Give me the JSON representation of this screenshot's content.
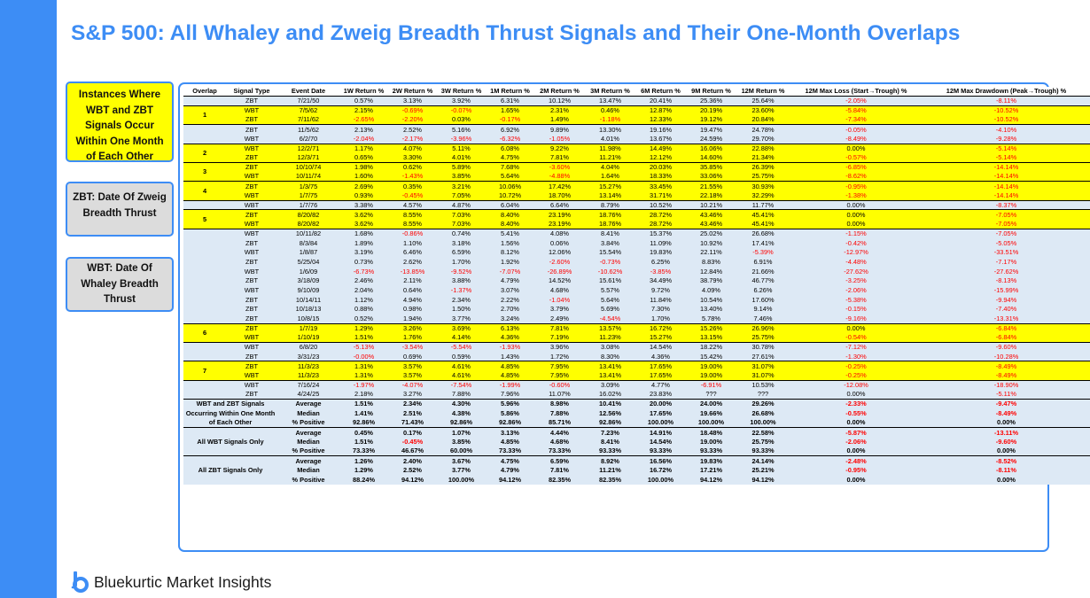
{
  "title": "S&P 500: All Whaley and Zweig Breadth Thrust Signals and Their One-Month Overlaps",
  "callouts": {
    "overlap": "Instances Where WBT and ZBT Signals Occur Within One Month of Each Other",
    "zbt": "ZBT: Date Of Zweig Breadth Thrust",
    "wbt": "WBT: Date Of Whaley Breadth Thrust"
  },
  "headers": [
    "Overlap",
    "Signal Type",
    "Event Date",
    "1W Return %",
    "2W Return %",
    "3W Return %",
    "1M Return %",
    "2M Return %",
    "3M Return %",
    "6M Return %",
    "9M Return %",
    "12M Return %",
    "12M Max Loss (Start→Trough) %",
    "12M Max Drawdown (Peak→Trough) %"
  ],
  "groups": [
    {
      "overlap": "",
      "hl": false,
      "rows": [
        [
          "ZBT",
          "7/21/50",
          "0.57%",
          "3.13%",
          "3.92%",
          "6.31%",
          "10.12%",
          "13.47%",
          "20.41%",
          "25.36%",
          "25.64%",
          "-2.05%",
          "-8.11%"
        ]
      ]
    },
    {
      "overlap": "1",
      "hl": true,
      "rows": [
        [
          "WBT",
          "7/5/62",
          "2.15%",
          "-0.69%",
          "-0.07%",
          "1.65%",
          "2.31%",
          "0.46%",
          "12.87%",
          "20.19%",
          "23.60%",
          "-5.84%",
          "-10.52%"
        ],
        [
          "ZBT",
          "7/11/62",
          "-2.65%",
          "-2.20%",
          "0.03%",
          "-0.17%",
          "1.49%",
          "-1.18%",
          "12.33%",
          "19.12%",
          "20.84%",
          "-7.34%",
          "-10.52%"
        ]
      ]
    },
    {
      "overlap": "",
      "hl": false,
      "rows": [
        [
          "ZBT",
          "11/5/62",
          "2.13%",
          "2.52%",
          "5.16%",
          "6.92%",
          "9.89%",
          "13.30%",
          "19.16%",
          "19.47%",
          "24.78%",
          "-0.05%",
          "-4.10%"
        ],
        [
          "WBT",
          "6/2/70",
          "-2.04%",
          "-2.17%",
          "-3.96%",
          "-6.32%",
          "-1.05%",
          "4.01%",
          "13.67%",
          "24.59%",
          "29.70%",
          "-8.49%",
          "-9.28%"
        ]
      ]
    },
    {
      "overlap": "2",
      "hl": true,
      "rows": [
        [
          "WBT",
          "12/2/71",
          "1.17%",
          "4.07%",
          "5.11%",
          "6.08%",
          "9.22%",
          "11.98%",
          "14.49%",
          "16.06%",
          "22.88%",
          "0.00%",
          "-5.14%"
        ],
        [
          "ZBT",
          "12/3/71",
          "0.65%",
          "3.30%",
          "4.01%",
          "4.75%",
          "7.81%",
          "11.21%",
          "12.12%",
          "14.60%",
          "21.34%",
          "-0.57%",
          "-5.14%"
        ]
      ]
    },
    {
      "overlap": "3",
      "hl": true,
      "rows": [
        [
          "ZBT",
          "10/10/74",
          "1.98%",
          "0.62%",
          "5.89%",
          "7.68%",
          "-3.60%",
          "4.04%",
          "20.03%",
          "35.85%",
          "26.39%",
          "-6.85%",
          "-14.14%"
        ],
        [
          "WBT",
          "10/11/74",
          "1.60%",
          "-1.43%",
          "3.85%",
          "5.64%",
          "-4.88%",
          "1.64%",
          "18.33%",
          "33.06%",
          "25.75%",
          "-8.62%",
          "-14.14%"
        ]
      ]
    },
    {
      "overlap": "4",
      "hl": true,
      "rows": [
        [
          "ZBT",
          "1/3/75",
          "2.69%",
          "0.35%",
          "3.21%",
          "10.06%",
          "17.42%",
          "15.27%",
          "33.45%",
          "21.55%",
          "30.93%",
          "-0.95%",
          "-14.14%"
        ],
        [
          "WBT",
          "1/7/75",
          "0.93%",
          "-0.45%",
          "7.05%",
          "10.72%",
          "18.70%",
          "13.14%",
          "31.71%",
          "22.18%",
          "32.29%",
          "-1.38%",
          "-14.14%"
        ]
      ]
    },
    {
      "overlap": "",
      "hl": false,
      "rows": [
        [
          "WBT",
          "1/7/76",
          "3.38%",
          "4.57%",
          "4.87%",
          "6.04%",
          "6.64%",
          "8.79%",
          "10.52%",
          "10.21%",
          "11.77%",
          "0.00%",
          "-8.37%"
        ]
      ]
    },
    {
      "overlap": "5",
      "hl": true,
      "rows": [
        [
          "ZBT",
          "8/20/82",
          "3.62%",
          "8.55%",
          "7.03%",
          "8.40%",
          "23.19%",
          "18.76%",
          "28.72%",
          "43.46%",
          "45.41%",
          "0.00%",
          "-7.05%"
        ],
        [
          "WBT",
          "8/20/82",
          "3.62%",
          "8.55%",
          "7.03%",
          "8.40%",
          "23.19%",
          "18.76%",
          "28.72%",
          "43.46%",
          "45.41%",
          "0.00%",
          "-7.05%"
        ]
      ]
    },
    {
      "overlap": "",
      "hl": false,
      "rows": [
        [
          "WBT",
          "10/11/82",
          "1.68%",
          "-0.86%",
          "0.74%",
          "5.41%",
          "4.08%",
          "8.41%",
          "15.37%",
          "25.02%",
          "26.68%",
          "-1.15%",
          "-7.05%"
        ],
        [
          "ZBT",
          "8/3/84",
          "1.89%",
          "1.10%",
          "3.18%",
          "1.56%",
          "0.06%",
          "3.84%",
          "11.09%",
          "10.92%",
          "17.41%",
          "-0.42%",
          "-5.05%"
        ],
        [
          "WBT",
          "1/8/87",
          "3.19%",
          "6.46%",
          "6.59%",
          "8.12%",
          "12.06%",
          "15.54%",
          "19.83%",
          "22.11%",
          "-5.39%",
          "-12.97%",
          "-33.51%"
        ],
        [
          "ZBT",
          "5/25/04",
          "0.73%",
          "2.62%",
          "1.70%",
          "1.92%",
          "-2.60%",
          "-0.73%",
          "6.25%",
          "8.83%",
          "6.91%",
          "-4.48%",
          "-7.17%"
        ],
        [
          "WBT",
          "1/6/09",
          "-6.73%",
          "-13.85%",
          "-9.52%",
          "-7.07%",
          "-26.89%",
          "-10.62%",
          "-3.85%",
          "12.84%",
          "21.66%",
          "-27.62%",
          "-27.62%"
        ],
        [
          "ZBT",
          "3/18/09",
          "2.46%",
          "2.11%",
          "3.88%",
          "4.79%",
          "14.52%",
          "15.61%",
          "34.49%",
          "38.79%",
          "46.77%",
          "-3.25%",
          "-8.13%"
        ],
        [
          "WBT",
          "9/10/09",
          "2.04%",
          "0.64%",
          "-1.37%",
          "3.07%",
          "4.68%",
          "5.57%",
          "9.72%",
          "4.09%",
          "6.26%",
          "-2.06%",
          "-15.99%"
        ],
        [
          "ZBT",
          "10/14/11",
          "1.12%",
          "4.94%",
          "2.34%",
          "2.22%",
          "-1.04%",
          "5.64%",
          "11.84%",
          "10.54%",
          "17.60%",
          "-5.38%",
          "-9.94%"
        ],
        [
          "ZBT",
          "10/18/13",
          "0.88%",
          "0.98%",
          "1.50%",
          "2.70%",
          "3.79%",
          "5.69%",
          "7.30%",
          "13.40%",
          "9.14%",
          "-0.15%",
          "-7.40%"
        ],
        [
          "ZBT",
          "10/8/15",
          "0.52%",
          "1.94%",
          "3.77%",
          "3.24%",
          "2.49%",
          "-4.54%",
          "1.70%",
          "5.78%",
          "7.46%",
          "-9.16%",
          "-13.31%"
        ]
      ]
    },
    {
      "overlap": "6",
      "hl": true,
      "rows": [
        [
          "ZBT",
          "1/7/19",
          "1.29%",
          "3.26%",
          "3.69%",
          "6.13%",
          "7.81%",
          "13.57%",
          "16.72%",
          "15.26%",
          "26.96%",
          "0.00%",
          "-6.84%"
        ],
        [
          "WBT",
          "1/10/19",
          "1.51%",
          "1.76%",
          "4.14%",
          "4.36%",
          "7.19%",
          "11.23%",
          "15.27%",
          "13.15%",
          "25.75%",
          "-0.54%",
          "-6.84%"
        ]
      ]
    },
    {
      "overlap": "",
      "hl": false,
      "rows": [
        [
          "WBT",
          "6/8/20",
          "-5.13%",
          "-3.54%",
          "-5.54%",
          "-1.93%",
          "3.96%",
          "3.08%",
          "14.54%",
          "18.22%",
          "30.78%",
          "-7.12%",
          "-9.60%"
        ],
        [
          "ZBT",
          "3/31/23",
          "-0.00%",
          "0.69%",
          "0.59%",
          "1.43%",
          "1.72%",
          "8.30%",
          "4.36%",
          "15.42%",
          "27.61%",
          "-1.30%",
          "-10.28%"
        ]
      ]
    },
    {
      "overlap": "7",
      "hl": true,
      "rows": [
        [
          "ZBT",
          "11/3/23",
          "1.31%",
          "3.57%",
          "4.61%",
          "4.85%",
          "7.95%",
          "13.41%",
          "17.65%",
          "19.00%",
          "31.07%",
          "-0.25%",
          "-8.49%"
        ],
        [
          "WBT",
          "11/3/23",
          "1.31%",
          "3.57%",
          "4.61%",
          "4.85%",
          "7.95%",
          "13.41%",
          "17.65%",
          "19.00%",
          "31.07%",
          "-0.25%",
          "-8.49%"
        ]
      ]
    },
    {
      "overlap": "",
      "hl": false,
      "rows": [
        [
          "WBT",
          "7/16/24",
          "-1.97%",
          "-4.07%",
          "-7.54%",
          "-1.99%",
          "-0.60%",
          "3.09%",
          "4.77%",
          "-6.91%",
          "10.53%",
          "-12.08%",
          "-18.90%"
        ],
        [
          "ZBT",
          "4/24/25",
          "2.18%",
          "3.27%",
          "7.88%",
          "7.96%",
          "11.07%",
          "16.02%",
          "23.83%",
          "???",
          "???",
          "0.00%",
          "-5.11%"
        ]
      ]
    }
  ],
  "summary": [
    {
      "label": "WBT and ZBT Signals Occurring Within One Month of Each Other",
      "rows": [
        [
          "Average",
          "1.51%",
          "2.34%",
          "4.30%",
          "5.96%",
          "8.98%",
          "10.41%",
          "20.00%",
          "24.00%",
          "29.26%",
          "-2.33%",
          "-9.47%"
        ],
        [
          "Median",
          "1.41%",
          "2.51%",
          "4.38%",
          "5.86%",
          "7.88%",
          "12.56%",
          "17.65%",
          "19.66%",
          "26.68%",
          "-0.55%",
          "-8.49%"
        ],
        [
          "% Positive",
          "92.86%",
          "71.43%",
          "92.86%",
          "92.86%",
          "85.71%",
          "92.86%",
          "100.00%",
          "100.00%",
          "100.00%",
          "0.00%",
          "0.00%"
        ]
      ]
    },
    {
      "label": "All WBT Signals Only",
      "rows": [
        [
          "Average",
          "0.45%",
          "0.17%",
          "1.07%",
          "3.13%",
          "4.44%",
          "7.23%",
          "14.91%",
          "18.48%",
          "22.58%",
          "-5.87%",
          "-13.11%"
        ],
        [
          "Median",
          "1.51%",
          "-0.45%",
          "3.85%",
          "4.85%",
          "4.68%",
          "8.41%",
          "14.54%",
          "19.00%",
          "25.75%",
          "-2.06%",
          "-9.60%"
        ],
        [
          "% Positive",
          "73.33%",
          "46.67%",
          "60.00%",
          "73.33%",
          "73.33%",
          "93.33%",
          "93.33%",
          "93.33%",
          "93.33%",
          "0.00%",
          "0.00%"
        ]
      ]
    },
    {
      "label": "All ZBT Signals Only",
      "rows": [
        [
          "Average",
          "1.26%",
          "2.40%",
          "3.67%",
          "4.75%",
          "6.59%",
          "8.92%",
          "16.56%",
          "19.83%",
          "24.14%",
          "-2.48%",
          "-8.52%"
        ],
        [
          "Median",
          "1.29%",
          "2.52%",
          "3.77%",
          "4.79%",
          "7.81%",
          "11.21%",
          "16.72%",
          "17.21%",
          "25.21%",
          "-0.95%",
          "-8.11%"
        ],
        [
          "% Positive",
          "88.24%",
          "94.12%",
          "100.00%",
          "94.12%",
          "82.35%",
          "82.35%",
          "100.00%",
          "94.12%",
          "94.12%",
          "0.00%",
          "0.00%"
        ]
      ]
    }
  ],
  "brand": {
    "name": "Bluekurtic Market Insights"
  },
  "colors": {
    "accent": "#3d8df5",
    "highlight": "#ffff00",
    "row": "#dde9f5",
    "negative": "#ff0000"
  },
  "icons": {
    "logo": "bluekurtic-logo-icon"
  }
}
